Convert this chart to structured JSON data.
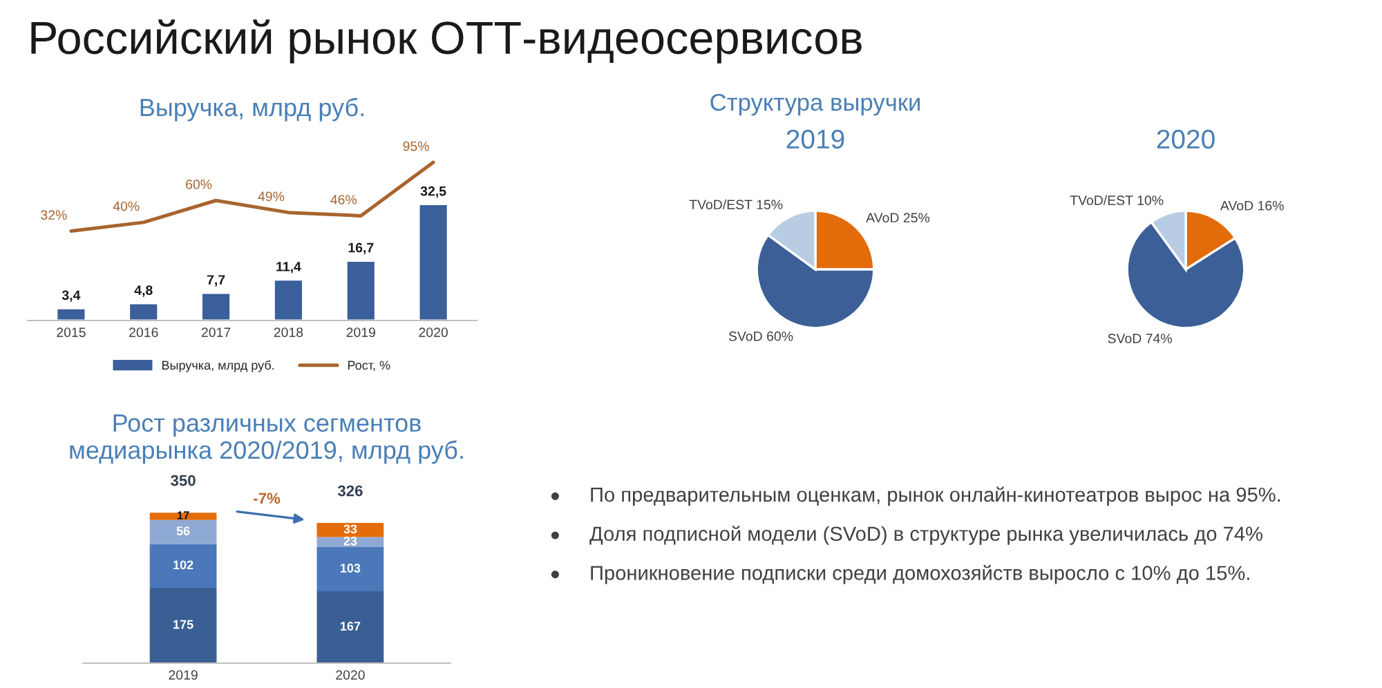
{
  "chart_data": [
    {
      "type": "other",
      "title": "Российский рынок ОТТ-видеосервисов"
    },
    {
      "type": "bar",
      "title": "Выручка, млрд руб.",
      "categories": [
        "2015",
        "2016",
        "2017",
        "2018",
        "2019",
        "2020"
      ],
      "tick_labels": "x",
      "legend": "bottom",
      "series": [
        {
          "name": "Выручка, млрд руб.",
          "color": "#3a5f9a",
          "values": [
            3.4,
            4.8,
            7.7,
            11.4,
            16.7,
            32.5
          ],
          "value_labels": [
            "3,4",
            "4,8",
            "7,7",
            "11,4",
            "16,7",
            "32,5"
          ]
        },
        {
          "name": "Рост, %",
          "type": "line",
          "axis": "y2",
          "color": "#a8642e",
          "values": [
            32,
            40,
            60,
            49,
            46,
            95
          ],
          "value_labels": [
            "32%",
            "40%",
            "60%",
            "49%",
            "46%",
            "95%"
          ]
        }
      ]
    },
    {
      "type": "pie",
      "title": "Структура выручки",
      "subtitle": "2019",
      "categories": [
        "AVoD",
        "SVoD",
        "TVoD/EST"
      ],
      "values": [
        25,
        60,
        15
      ],
      "colors": [
        "#e36c0a",
        "#3c5f98",
        "#b8cce4"
      ],
      "value_labels": [
        "25%",
        "60%",
        "15%"
      ]
    },
    {
      "type": "pie",
      "title": "2020",
      "categories": [
        "AVoD",
        "SVoD",
        "TVoD/EST"
      ],
      "values": [
        16,
        74,
        10
      ],
      "colors": [
        "#e36c0a",
        "#3c5f98",
        "#b8cce4"
      ],
      "value_labels": [
        "16%",
        "74%",
        "10%"
      ]
    },
    {
      "type": "bar",
      "title": "Рост различных сегментов\nмедиарынка 2020/2019, млрд руб.",
      "categories": [
        "2019",
        "2020"
      ],
      "stacked": true,
      "data_labels": true,
      "tick_labels": "x",
      "totals": [
        "350",
        "326"
      ],
      "annotations": [
        "-7%"
      ],
      "series": [
        {
          "color": "#3a5f94",
          "values": [
            175,
            167
          ]
        },
        {
          "color": "#4a78b8",
          "values": [
            102,
            103
          ]
        },
        {
          "color": "#8ea9d4",
          "values": [
            56,
            23
          ]
        },
        {
          "color": "#e46c0a",
          "values": [
            17,
            33
          ]
        }
      ]
    },
    {
      "type": "other",
      "annotations": [
        "По предварительным оценкам, рынок онлайн-кинотеатров вырос на 95%.",
        "Доля подписной модели (SVoD) в структуре рынка увеличилась до 74%",
        "Проникновение подписки среди домохозяйств выросло с 10% до 15%."
      ]
    }
  ]
}
